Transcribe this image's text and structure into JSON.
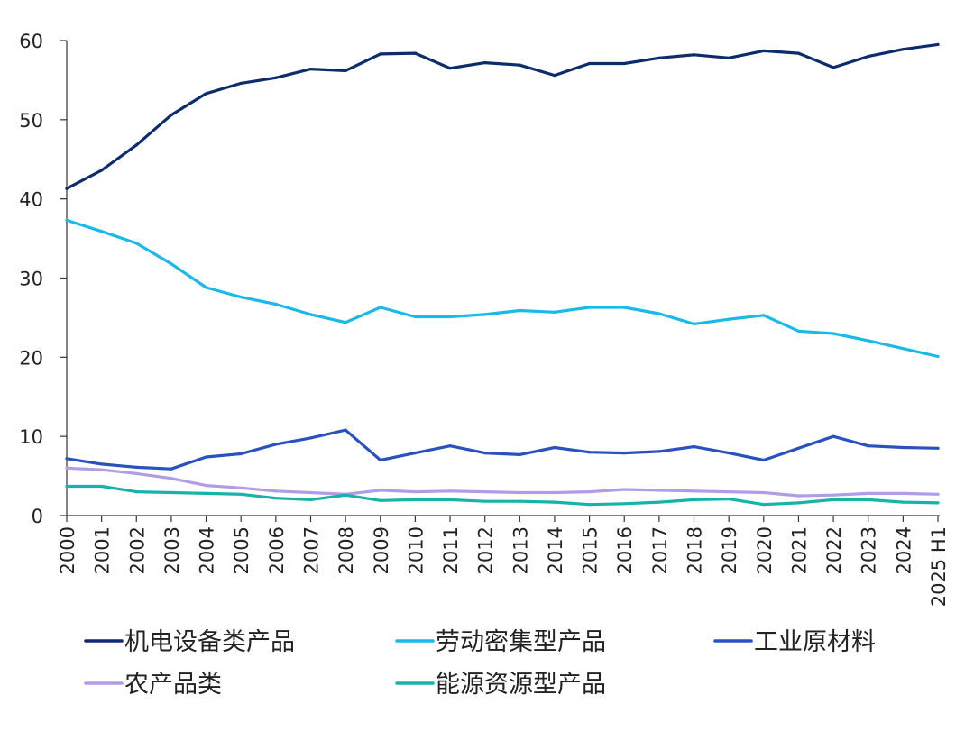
{
  "chart_data": {
    "type": "line",
    "title": "",
    "xlabel": "",
    "ylabel": "",
    "ylim": [
      0,
      60
    ],
    "y_ticks": [
      0,
      10,
      20,
      30,
      40,
      50,
      60
    ],
    "grid": false,
    "legend_position": "bottom",
    "categories": [
      "2000",
      "2001",
      "2002",
      "2003",
      "2004",
      "2005",
      "2006",
      "2007",
      "2008",
      "2009",
      "2010",
      "2011",
      "2012",
      "2013",
      "2014",
      "2015",
      "2016",
      "2017",
      "2018",
      "2019",
      "2020",
      "2021",
      "2022",
      "2023",
      "2024",
      "2025 H1"
    ],
    "series": [
      {
        "name": "机电设备类产品",
        "color": "#0d2c6c",
        "values": [
          41.3,
          43.6,
          46.8,
          50.6,
          53.3,
          54.6,
          55.3,
          56.4,
          56.2,
          58.3,
          58.4,
          56.5,
          57.2,
          56.9,
          55.6,
          57.1,
          57.1,
          57.8,
          58.2,
          57.8,
          58.7,
          58.4,
          56.6,
          58.0,
          58.9,
          59.5
        ]
      },
      {
        "name": "劳动密集型产品",
        "color": "#1ab9e8",
        "values": [
          37.3,
          35.9,
          34.4,
          31.8,
          28.8,
          27.6,
          26.7,
          25.4,
          24.4,
          26.3,
          25.1,
          25.1,
          25.4,
          25.9,
          25.7,
          26.3,
          26.3,
          25.5,
          24.2,
          24.8,
          25.3,
          23.3,
          23.0,
          22.1,
          21.1,
          20.1
        ]
      },
      {
        "name": "工业原材料",
        "color": "#2a52be",
        "values": [
          7.2,
          6.5,
          6.1,
          5.9,
          7.4,
          7.8,
          9.0,
          9.8,
          10.8,
          7.0,
          7.9,
          8.8,
          7.9,
          7.7,
          8.6,
          8.0,
          7.9,
          8.1,
          8.7,
          7.9,
          7.0,
          8.5,
          10.0,
          8.8,
          8.6,
          8.5
        ]
      },
      {
        "name": "农产品类",
        "color": "#b19de6",
        "values": [
          6.0,
          5.8,
          5.3,
          4.7,
          3.8,
          3.5,
          3.1,
          2.9,
          2.7,
          3.2,
          3.0,
          3.1,
          3.0,
          2.9,
          2.9,
          3.0,
          3.3,
          3.2,
          3.1,
          3.0,
          2.9,
          2.5,
          2.6,
          2.8,
          2.8,
          2.7
        ]
      },
      {
        "name": "能源资源型产品",
        "color": "#17b3a8",
        "values": [
          3.7,
          3.7,
          3.0,
          2.9,
          2.8,
          2.7,
          2.2,
          2.0,
          2.6,
          1.9,
          2.0,
          2.0,
          1.8,
          1.8,
          1.7,
          1.4,
          1.5,
          1.7,
          2.0,
          2.1,
          1.4,
          1.6,
          2.0,
          2.0,
          1.7,
          1.6
        ]
      }
    ]
  }
}
